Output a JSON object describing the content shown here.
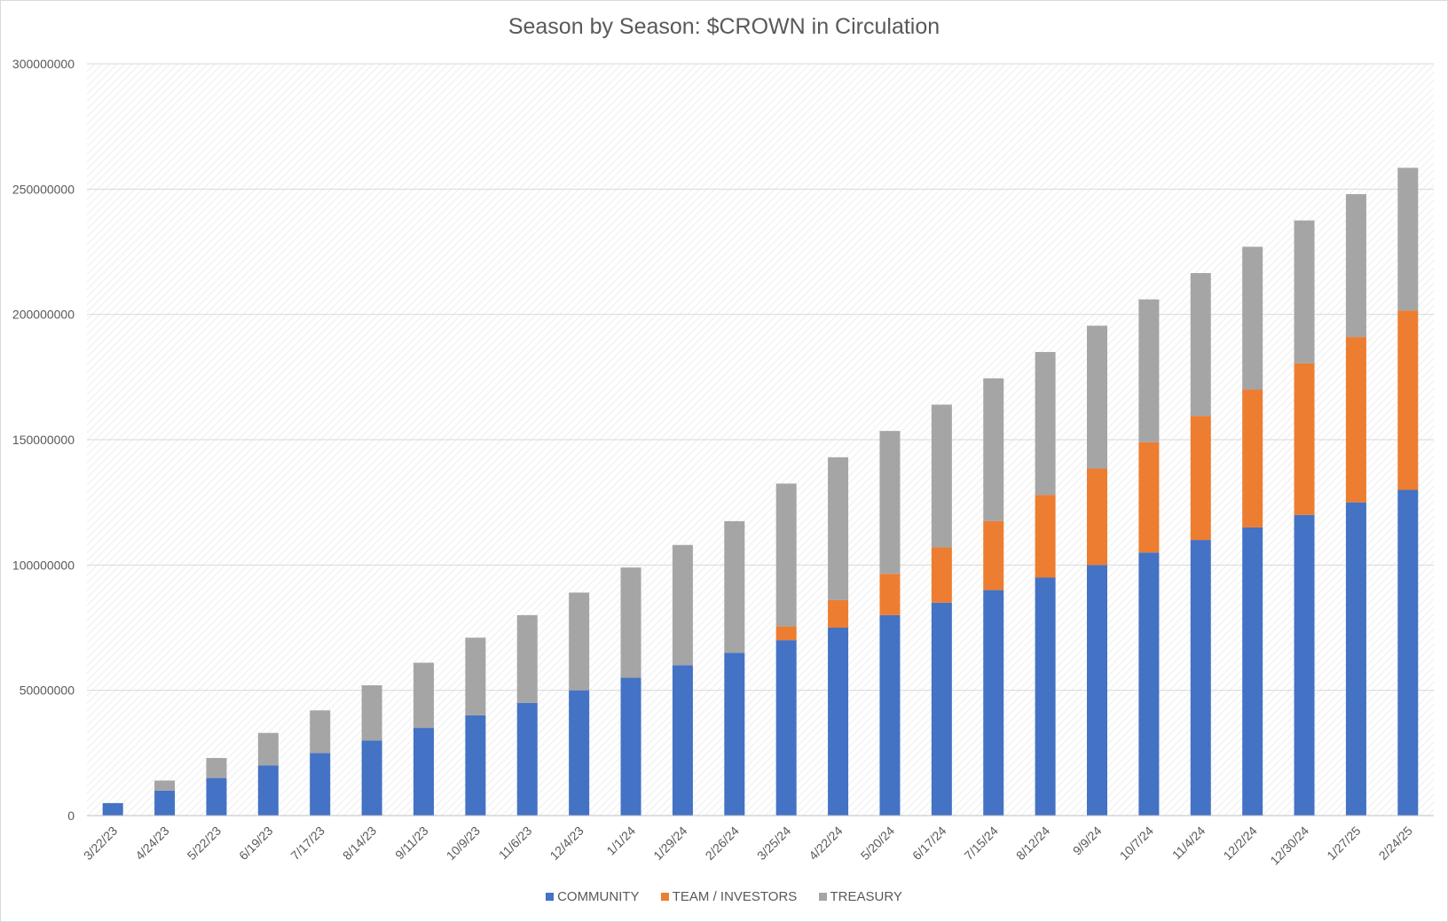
{
  "chart_data": {
    "type": "bar",
    "stacked": true,
    "title": "Season by Season: $CROWN in Circulation",
    "xlabel": "",
    "ylabel": "",
    "ylim": [
      0,
      300000000
    ],
    "yticks": [
      "0",
      "50000000",
      "100000000",
      "150000000",
      "200000000",
      "250000000",
      "300000000"
    ],
    "grid": true,
    "legend_position": "bottom",
    "categories": [
      "3/22/23",
      "4/24/23",
      "5/22/23",
      "6/19/23",
      "7/17/23",
      "8/14/23",
      "9/11/23",
      "10/9/23",
      "11/6/23",
      "12/4/23",
      "1/1/24",
      "1/29/24",
      "2/26/24",
      "3/25/24",
      "4/22/24",
      "5/20/24",
      "6/17/24",
      "7/15/24",
      "8/12/24",
      "9/9/24",
      "10/7/24",
      "11/4/24",
      "12/2/24",
      "12/30/24",
      "1/27/25",
      "2/24/25"
    ],
    "series": [
      {
        "name": "COMMUNITY",
        "color": "#4472c4",
        "values": [
          5000000,
          10000000,
          15000000,
          20000000,
          25000000,
          30000000,
          35000000,
          40000000,
          45000000,
          50000000,
          55000000,
          60000000,
          65000000,
          70000000,
          75000000,
          80000000,
          85000000,
          90000000,
          95000000,
          100000000,
          105000000,
          110000000,
          115000000,
          120000000,
          125000000,
          130000000
        ]
      },
      {
        "name": "TEAM / INVESTORS",
        "color": "#ed7d31",
        "values": [
          0,
          0,
          0,
          0,
          0,
          0,
          0,
          0,
          0,
          0,
          0,
          0,
          0,
          5500000,
          11000000,
          16500000,
          22000000,
          27500000,
          33000000,
          38500000,
          44000000,
          49500000,
          55000000,
          60500000,
          66000000,
          71500000
        ]
      },
      {
        "name": "TREASURY",
        "color": "#a5a5a5",
        "values": [
          0,
          4000000,
          8000000,
          13000000,
          17000000,
          22000000,
          26000000,
          31000000,
          35000000,
          39000000,
          44000000,
          48000000,
          52500000,
          57000000,
          57000000,
          57000000,
          57000000,
          57000000,
          57000000,
          57000000,
          57000000,
          57000000,
          57000000,
          57000000,
          57000000,
          57000000
        ]
      }
    ]
  }
}
